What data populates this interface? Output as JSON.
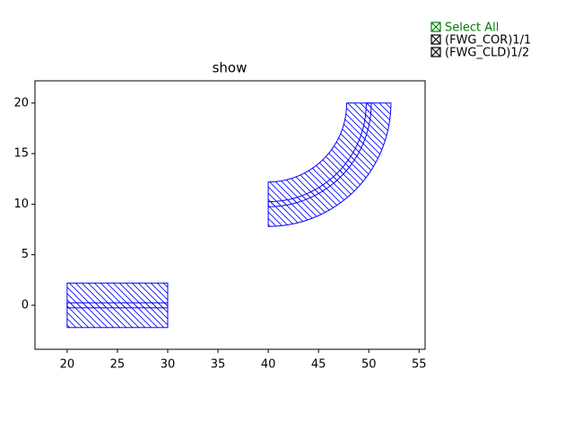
{
  "chart_data": {
    "type": "layout",
    "title": "show",
    "xlim": [
      16.8,
      55.6
    ],
    "ylim": [
      -4.35,
      22.2
    ],
    "xticks": [
      20,
      25,
      30,
      35,
      40,
      45,
      50,
      55
    ],
    "yticks": [
      0,
      5,
      10,
      15,
      20
    ],
    "select_all": {
      "label": "Select All",
      "color": "#008000"
    },
    "series": [
      {
        "name": "(FWG_COR)1/1",
        "color": "#0000ff",
        "rects": [
          {
            "x": [
              20,
              30
            ],
            "y": [
              -0.25,
              0.25
            ]
          }
        ],
        "arcs": [
          {
            "center": [
              40,
              20
            ],
            "radii": [
              9.75,
              10.25
            ],
            "angles": [
              -90,
              0
            ]
          }
        ]
      },
      {
        "name": "(FWG_CLD)1/2",
        "color": "#0000ff",
        "rects": [
          {
            "x": [
              20,
              30
            ],
            "y": [
              -2.2,
              2.2
            ]
          }
        ],
        "arcs": [
          {
            "center": [
              40,
              20
            ],
            "radii": [
              7.8,
              12.2
            ],
            "angles": [
              -90,
              0
            ]
          }
        ]
      }
    ]
  }
}
